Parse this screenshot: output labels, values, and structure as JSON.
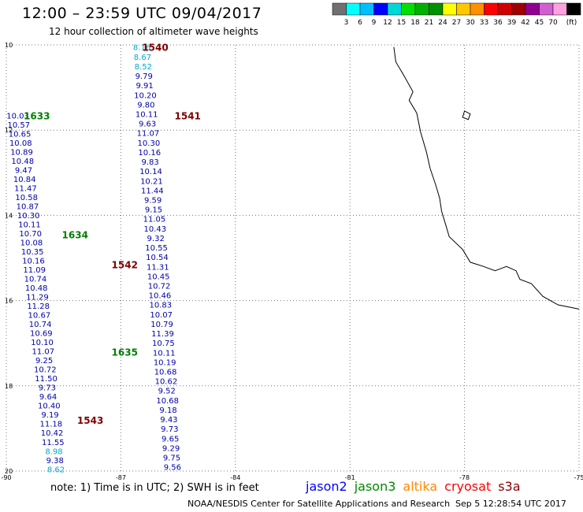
{
  "header": {
    "title": "12:00 – 23:59 UTC 09/04/2017",
    "subtitle": "12 hour collection of altimeter wave heights"
  },
  "legend": {
    "unit": "(ft)",
    "colors": [
      "#707070",
      "#00ffff",
      "#00bfff",
      "#0000ff",
      "#00d8d8",
      "#00e000",
      "#00b000",
      "#009000",
      "#ffff00",
      "#ffc800",
      "#ff9000",
      "#ff0000",
      "#d00000",
      "#a00000",
      "#900090",
      "#d060d0",
      "#ffa0e0",
      "#000000"
    ],
    "labels": [
      "3",
      "6",
      "9",
      "12",
      "15",
      "18",
      "21",
      "24",
      "27",
      "30",
      "33",
      "36",
      "39",
      "42",
      "45",
      "70"
    ]
  },
  "map": {
    "lon_ticks": [
      "-90",
      "-87",
      "-84",
      "-81",
      "-78",
      "-75"
    ],
    "lat_ticks": [
      "10",
      "12",
      "14",
      "16",
      "18",
      "20"
    ],
    "pass_labels": [
      {
        "text": "1540",
        "color": "#800000",
        "lat": 10.05,
        "lon": -86.1
      },
      {
        "text": "1541",
        "color": "#800000",
        "lat": 11.65,
        "lon": -85.25
      },
      {
        "text": "1633",
        "color": "#008000",
        "lat": 11.65,
        "lon": -89.2
      },
      {
        "text": "1634",
        "color": "#008000",
        "lat": 14.45,
        "lon": -88.2
      },
      {
        "text": "1542",
        "color": "#800000",
        "lat": 15.15,
        "lon": -86.9
      },
      {
        "text": "1635",
        "color": "#008000",
        "lat": 17.2,
        "lon": -86.9
      },
      {
        "text": "1543",
        "color": "#800000",
        "lat": 18.8,
        "lon": -87.8
      }
    ],
    "tracks": [
      {
        "name": "track-1540",
        "start_lat": 10.05,
        "end_lat": 19.9,
        "start_lon": -86.45,
        "end_lon": -85.65,
        "values": [
          "8.16",
          "8.67",
          "8.52",
          "9.79",
          "9.91",
          "10.20",
          "9.80",
          "10.11",
          "9.63",
          "11.07",
          "10.30",
          "10.16",
          "9.83",
          "10.14",
          "10.21",
          "11.44",
          "9.59",
          "9.15",
          "11.05",
          "10.43",
          "9.32",
          "10.55",
          "10.54",
          "11.31",
          "10.45",
          "10.72",
          "10.46",
          "10.83",
          "10.07",
          "10.79",
          "11.39",
          "10.75",
          "10.11",
          "10.19",
          "10.68",
          "10.62",
          "9.52",
          "10.68",
          "9.18",
          "9.43",
          "9.73",
          "9.65",
          "9.29",
          "9.75",
          "9.56"
        ],
        "colors": {
          "0": "#00aacc",
          "1": "#00aacc",
          "2": "#00aacc"
        }
      },
      {
        "name": "track-1633",
        "start_lat": 11.65,
        "end_lat": 19.95,
        "start_lon": -89.7,
        "end_lon": -88.7,
        "values": [
          "10.03",
          "10.57",
          "10.65",
          "10.08",
          "10.89",
          "10.48",
          "9.47",
          "10.84",
          "11.47",
          "10.58",
          "10.87",
          "10.30",
          "10.11",
          "10.70",
          "10.08",
          "10.35",
          "10.16",
          "11.09",
          "10.74",
          "10.48",
          "11.29",
          "11.28",
          "10.67",
          "10.74",
          "10.69",
          "10.10",
          "11.07",
          "9.25",
          "10.72",
          "11.50",
          "9.73",
          "9.64",
          "10.40",
          "9.19",
          "11.18",
          "10.42",
          "11.55",
          "8.98",
          "9.38",
          "8.62"
        ],
        "colors": {
          "37": "#00aacc",
          "39": "#00aacc"
        }
      }
    ],
    "coast": [
      [
        -79.85,
        10.05
      ],
      [
        -79.8,
        10.4
      ],
      [
        -79.6,
        10.7
      ],
      [
        -79.35,
        11.1
      ],
      [
        -79.45,
        11.3
      ],
      [
        -79.25,
        11.6
      ],
      [
        -79.15,
        12.05
      ],
      [
        -79.0,
        12.5
      ],
      [
        -78.9,
        12.9
      ],
      [
        -78.75,
        13.3
      ],
      [
        -78.65,
        13.6
      ],
      [
        -78.6,
        13.9
      ],
      [
        -78.5,
        14.2
      ],
      [
        -78.4,
        14.5
      ],
      [
        -78.05,
        14.8
      ],
      [
        -77.85,
        15.1
      ],
      [
        -77.5,
        15.2
      ],
      [
        -77.2,
        15.3
      ],
      [
        -76.9,
        15.2
      ],
      [
        -76.65,
        15.3
      ],
      [
        -76.55,
        15.5
      ],
      [
        -76.25,
        15.6
      ],
      [
        -75.95,
        15.9
      ],
      [
        -75.55,
        16.1
      ],
      [
        -75.0,
        16.2
      ]
    ],
    "island": [
      [
        -78.0,
        11.55
      ],
      [
        -77.85,
        11.62
      ],
      [
        -77.9,
        11.75
      ],
      [
        -78.05,
        11.7
      ],
      [
        -78.0,
        11.55
      ]
    ]
  },
  "footer": {
    "note": "note:  1) Time is in UTC;  2) SWH is in feet",
    "satellites": [
      {
        "name": "jason2",
        "color": "#0000ff"
      },
      {
        "name": "jason3",
        "color": "#008800"
      },
      {
        "name": "altika",
        "color": "#ff8800"
      },
      {
        "name": "cryosat",
        "color": "#ff0000"
      },
      {
        "name": "s3a",
        "color": "#880000"
      }
    ],
    "credit": "NOAA/NESDIS Center for Satellite Applications and Research",
    "timestamp": "Sep  5 12:28:54 UTC 2017"
  }
}
